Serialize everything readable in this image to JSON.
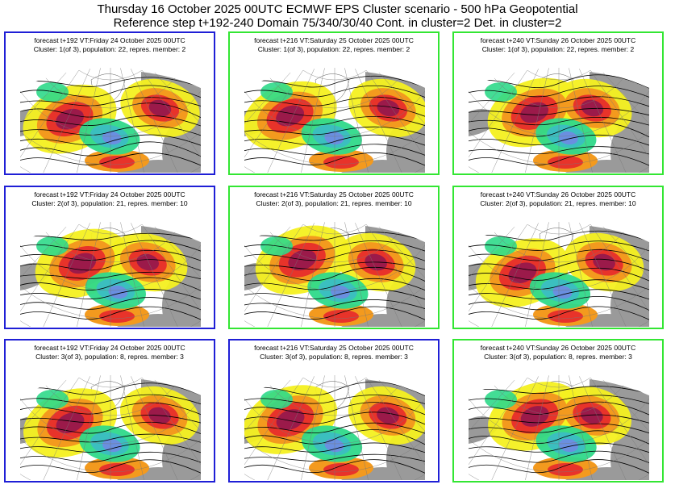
{
  "header": {
    "line1": "Thursday 16 October 2025 00UTC ECMWF EPS Cluster scenario - 500 hPa Geopotential",
    "line2": "Reference step t+192-240 Domain 75/340/30/40 Cont. in cluster=2 Det. in cluster=2"
  },
  "colors": {
    "frame_blue": "#1f1fd6",
    "frame_green": "#33e633",
    "positive_dark": "#9b1a4a",
    "positive_red": "#e8332a",
    "positive_orange": "#f39a1e",
    "positive_yellow": "#f4f020",
    "negative_green": "#2fd98a",
    "negative_teal": "#3bbfbf",
    "negative_blue": "#6a8fe0",
    "land": "#9a9a9a",
    "contour": "#000000"
  },
  "panels": [
    {
      "line1": "forecast t+192 VT:Friday 24 October 2025 00UTC",
      "line2": "Cluster: 1(of 3), population: 22, repres. member: 2",
      "frame": "blue"
    },
    {
      "line1": "forecast t+216 VT:Saturday 25 October 2025 00UTC",
      "line2": "Cluster: 1(of 3), population: 22, repres. member: 2",
      "frame": "green"
    },
    {
      "line1": "forecast t+240 VT:Sunday 26 October 2025 00UTC",
      "line2": "Cluster: 1(of 3), population: 22, repres. member: 2",
      "frame": "green"
    },
    {
      "line1": "forecast t+192 VT:Friday 24 October 2025 00UTC",
      "line2": "Cluster: 2(of 3), population: 21, repres. member: 10",
      "frame": "blue"
    },
    {
      "line1": "forecast t+216 VT:Saturday 25 October 2025 00UTC",
      "line2": "Cluster: 2(of 3), population: 21, repres. member: 10",
      "frame": "green"
    },
    {
      "line1": "forecast t+240 VT:Sunday 26 October 2025 00UTC",
      "line2": "Cluster: 2(of 3), population: 21, repres. member: 10",
      "frame": "green"
    },
    {
      "line1": "forecast t+192 VT:Friday 24 October 2025 00UTC",
      "line2": "Cluster: 3(of 3), population: 8, repres. member: 3",
      "frame": "blue"
    },
    {
      "line1": "forecast t+216 VT:Saturday 25 October 2025 00UTC",
      "line2": "Cluster: 3(of 3), population: 8, repres. member: 3",
      "frame": "blue"
    },
    {
      "line1": "forecast t+240 VT:Sunday 26 October 2025 00UTC",
      "line2": "Cluster: 3(of 3), population: 8, repres. member: 3",
      "frame": "green"
    }
  ]
}
